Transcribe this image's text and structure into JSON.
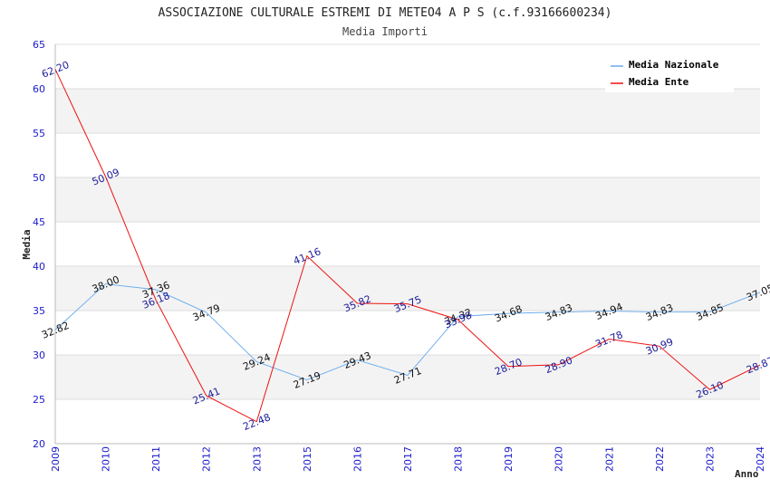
{
  "chart_data": {
    "type": "line",
    "title": "ASSOCIAZIONE CULTURALE ESTREMI DI METEO4 A P S (c.f.93166600234)",
    "subtitle": "Media Importi",
    "xlabel": "Anno",
    "ylabel": "Media",
    "ylim": [
      20,
      65
    ],
    "yticks": [
      "20",
      "25",
      "30",
      "35",
      "40",
      "45",
      "50",
      "55",
      "60",
      "65"
    ],
    "grid": true,
    "legend_position": "top-right",
    "categories": [
      "2009",
      "2010",
      "2011",
      "2012",
      "2013",
      "2015",
      "2016",
      "2017",
      "2018",
      "2019",
      "2020",
      "2021",
      "2022",
      "2023",
      "2024"
    ],
    "series": [
      {
        "name": "Media Nazionale",
        "color": "#66aaee",
        "label_color": "#111111",
        "values": [
          32.82,
          38.0,
          37.36,
          34.79,
          29.24,
          27.19,
          29.43,
          27.71,
          34.32,
          34.68,
          34.83,
          34.94,
          34.83,
          34.85,
          37.05
        ],
        "labels": [
          "32.82",
          "38.00",
          "37.36",
          "34.79",
          "29.24",
          "27.19",
          "29.43",
          "27.71",
          "34.32",
          "34.68",
          "34.83",
          "34.94",
          "34.83",
          "34.85",
          "37.05"
        ]
      },
      {
        "name": "Media Ente",
        "color": "#ee1111",
        "label_color": "#1a1a99",
        "values": [
          62.2,
          50.09,
          36.18,
          25.41,
          22.48,
          41.16,
          35.82,
          35.75,
          33.98,
          28.7,
          28.9,
          31.78,
          30.99,
          26.1,
          28.87
        ],
        "labels": [
          "62.20",
          "50.09",
          "36.18",
          "25.41",
          "22.48",
          "41.16",
          "35.82",
          "35.75",
          "33.98",
          "28.70",
          "28.90",
          "31.78",
          "30.99",
          "26.10",
          "28.87"
        ]
      }
    ]
  }
}
